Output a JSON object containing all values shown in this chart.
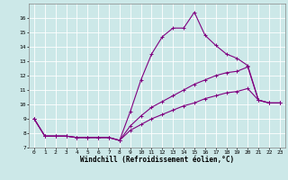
{
  "xlabel": "Windchill (Refroidissement éolien,°C)",
  "bg_color": "#cce8e8",
  "line_color": "#800080",
  "grid_color": "#ffffff",
  "xlim": [
    -0.5,
    23.5
  ],
  "ylim": [
    7,
    17
  ],
  "xticks": [
    0,
    1,
    2,
    3,
    4,
    5,
    6,
    7,
    8,
    9,
    10,
    11,
    12,
    13,
    14,
    15,
    16,
    17,
    18,
    19,
    20,
    21,
    22,
    23
  ],
  "yticks": [
    7,
    8,
    9,
    10,
    11,
    12,
    13,
    14,
    15,
    16
  ],
  "line1_x": [
    0,
    1,
    2,
    3,
    4,
    5,
    6,
    7,
    8,
    9,
    10,
    11,
    12,
    13,
    14,
    15,
    16,
    17,
    18,
    19,
    20,
    21,
    22,
    23
  ],
  "line1_y": [
    9.0,
    7.8,
    7.8,
    7.8,
    7.7,
    7.7,
    7.7,
    7.7,
    7.5,
    9.5,
    11.7,
    13.5,
    14.7,
    15.3,
    15.3,
    16.4,
    14.8,
    14.1,
    13.5,
    13.2,
    12.7,
    10.3,
    10.1,
    10.1
  ],
  "line2_x": [
    0,
    1,
    2,
    3,
    4,
    5,
    6,
    7,
    8,
    9,
    10,
    11,
    12,
    13,
    14,
    15,
    16,
    17,
    18,
    19,
    20,
    21,
    22,
    23
  ],
  "line2_y": [
    9.0,
    7.8,
    7.8,
    7.8,
    7.7,
    7.7,
    7.7,
    7.7,
    7.5,
    8.5,
    9.2,
    9.8,
    10.2,
    10.6,
    11.0,
    11.4,
    11.7,
    12.0,
    12.2,
    12.3,
    12.6,
    10.3,
    10.1,
    10.1
  ],
  "line3_x": [
    0,
    1,
    2,
    3,
    4,
    5,
    6,
    7,
    8,
    9,
    10,
    11,
    12,
    13,
    14,
    15,
    16,
    17,
    18,
    19,
    20,
    21,
    22,
    23
  ],
  "line3_y": [
    9.0,
    7.8,
    7.8,
    7.8,
    7.7,
    7.7,
    7.7,
    7.7,
    7.5,
    8.2,
    8.6,
    9.0,
    9.3,
    9.6,
    9.9,
    10.1,
    10.4,
    10.6,
    10.8,
    10.9,
    11.1,
    10.3,
    10.1,
    10.1
  ],
  "marker": "+",
  "markersize": 3,
  "linewidth": 0.8,
  "tick_fontsize": 4.5,
  "xlabel_fontsize": 5.5
}
